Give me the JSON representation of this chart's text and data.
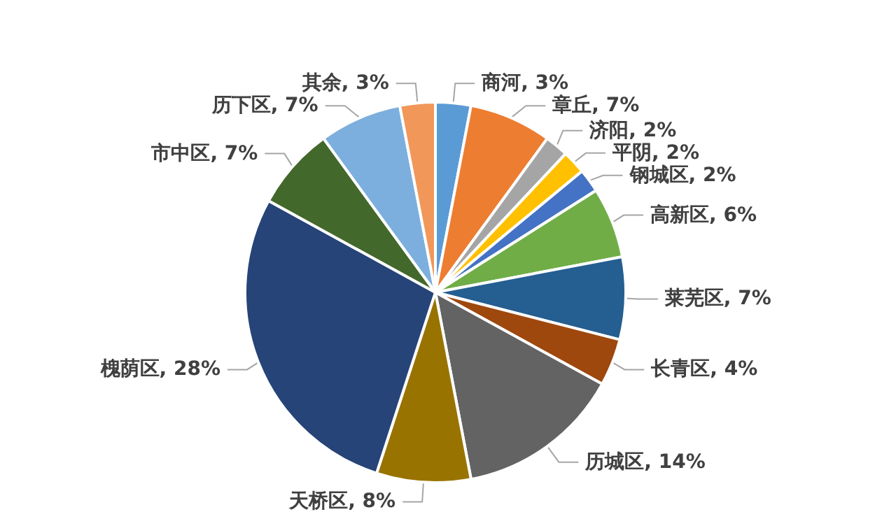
{
  "chart_data": {
    "type": "pie",
    "categories": [
      "商河",
      "章丘",
      "济阳",
      "平阴",
      "钢城区",
      "高新区",
      "莱芜区",
      "长青区",
      "历城区",
      "天桥区",
      "槐荫区",
      "市中区",
      "历下区",
      "其余"
    ],
    "values": [
      3,
      7,
      2,
      2,
      2,
      6,
      7,
      4,
      14,
      8,
      28,
      7,
      7,
      3
    ],
    "value_labels": [
      "3%",
      "7%",
      "2%",
      "2%",
      "2%",
      "6%",
      "7%",
      "4%",
      "14%",
      "8%",
      "28%",
      "7%",
      "7%",
      "3%"
    ],
    "colors": [
      "#5b9bd5",
      "#ed7d31",
      "#a5a5a5",
      "#ffc000",
      "#4472c4",
      "#70ad47",
      "#255e91",
      "#9e480e",
      "#636363",
      "#997300",
      "#264478",
      "#43682b",
      "#7cafdd",
      "#f1975a"
    ],
    "legend": false
  }
}
